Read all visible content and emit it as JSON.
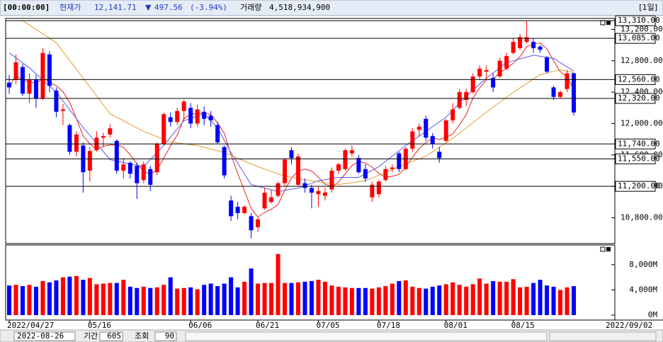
{
  "header": {
    "time": "[00:00:00]",
    "price_label": "현재가",
    "price": "12,141.71",
    "direction": "▼",
    "change": "497.56",
    "change_pct": "(-3.94%)",
    "volume_label": "거래량",
    "volume": "4,518,934,900",
    "period": "[1일]"
  },
  "toolbar": {
    "date": "2022-08-26",
    "span_label": "기간",
    "span": "605",
    "query": "조회",
    "count": "90"
  },
  "chart_data": {
    "type": "candlestick",
    "categories": [
      "2022/04/27",
      null,
      null,
      null,
      null,
      null,
      null,
      null,
      null,
      null,
      null,
      null,
      "05/16",
      null,
      null,
      null,
      null,
      null,
      null,
      null,
      null,
      null,
      null,
      null,
      null,
      null,
      null,
      "06/06",
      null,
      null,
      null,
      null,
      null,
      null,
      null,
      null,
      null,
      "06/21",
      null,
      null,
      null,
      null,
      null,
      null,
      null,
      null,
      "07/05",
      null,
      null,
      null,
      null,
      null,
      null,
      null,
      null,
      "07/18",
      null,
      null,
      null,
      null,
      null,
      null,
      null,
      null,
      null,
      "08/01",
      null,
      null,
      null,
      null,
      null,
      null,
      null,
      null,
      null,
      "08/15",
      null,
      null,
      null,
      null,
      null,
      null,
      null,
      null,
      null
    ],
    "x_end_label": "2022/09/02",
    "open": [
      12520,
      12560,
      12720,
      12380,
      12560,
      12320,
      12880,
      12420,
      12160,
      11980,
      11640,
      11720,
      11400,
      11660,
      11820,
      11860,
      11780,
      11400,
      11500,
      11460,
      11280,
      11420,
      11380,
      11740,
      12080,
      12020,
      12160,
      12200,
      12000,
      12150,
      12100,
      11980,
      11700,
      11020,
      10940,
      10860,
      10820,
      10680,
      10920,
      11000,
      11080,
      11240,
      11660,
      11220,
      11240,
      11180,
      11100,
      11080,
      11160,
      11400,
      11420,
      11620,
      11560,
      11420,
      11060,
      11100,
      11280,
      11420,
      11620,
      11420,
      11680,
      11920,
      12060,
      11840,
      11640,
      11780,
      12040,
      12200,
      12300,
      12400,
      12600,
      12660,
      12580,
      12600,
      12700,
      12900,
      12960,
      13040,
      13040,
      12980,
      12840,
      12460,
      12340,
      12440,
      12640
    ],
    "high": [
      12620,
      12880,
      12760,
      12640,
      12620,
      12960,
      12920,
      12460,
      12250,
      12000,
      11900,
      11760,
      11700,
      11900,
      11880,
      11990,
      11800,
      11560,
      11520,
      11500,
      11520,
      11460,
      11760,
      12140,
      12140,
      12200,
      12300,
      12260,
      12240,
      12220,
      12160,
      12020,
      11720,
      11080,
      11000,
      10960,
      10860,
      10800,
      11180,
      11160,
      11260,
      11560,
      11700,
      11620,
      11300,
      11220,
      11200,
      11180,
      11440,
      11500,
      11680,
      11720,
      11600,
      11480,
      11260,
      11280,
      11460,
      11480,
      11640,
      11700,
      11940,
      12000,
      12100,
      11880,
      11700,
      12060,
      12260,
      12440,
      12440,
      12640,
      12740,
      12740,
      12640,
      12840,
      12900,
      13080,
      13140,
      13310,
      13080,
      13000,
      12860,
      12480,
      12420,
      12680,
      12650
    ],
    "low": [
      12380,
      12500,
      12350,
      12260,
      12200,
      12300,
      12400,
      12080,
      11980,
      11600,
      11580,
      11120,
      11260,
      11640,
      11700,
      11820,
      11360,
      11300,
      11300,
      11040,
      11240,
      11140,
      11340,
      11720,
      11960,
      11980,
      12040,
      11940,
      11960,
      11980,
      11960,
      11740,
      11300,
      10760,
      10780,
      10840,
      10540,
      10620,
      10900,
      10980,
      11060,
      11200,
      11480,
      11200,
      11120,
      10920,
      10940,
      11020,
      11120,
      11360,
      11400,
      11580,
      11360,
      11260,
      11000,
      11060,
      11260,
      11380,
      11380,
      11400,
      11640,
      11840,
      11780,
      11680,
      11500,
      11760,
      12000,
      12180,
      12220,
      12380,
      12560,
      12560,
      12400,
      12580,
      12680,
      12880,
      12940,
      13020,
      12900,
      12900,
      12640,
      12300,
      12320,
      12400,
      12100
    ],
    "close": [
      12460,
      12780,
      12380,
      12560,
      12320,
      12900,
      12480,
      12150,
      12180,
      11640,
      11860,
      11380,
      11650,
      11820,
      11840,
      11940,
      11400,
      11480,
      11360,
      11240,
      11480,
      11220,
      11740,
      12120,
      12020,
      12160,
      12280,
      12000,
      12180,
      12060,
      12040,
      11760,
      11340,
      10820,
      10860,
      10940,
      10640,
      10780,
      11120,
      11060,
      11240,
      11540,
      11560,
      11580,
      11180,
      11120,
      11140,
      11120,
      11400,
      11480,
      11660,
      11660,
      11380,
      11300,
      11220,
      11260,
      11420,
      11440,
      11420,
      11680,
      11900,
      11960,
      11820,
      11740,
      11560,
      12040,
      12180,
      12400,
      12400,
      12600,
      12700,
      12680,
      12460,
      12800,
      12860,
      13040,
      13100,
      13100,
      12960,
      12940,
      12660,
      12340,
      12400,
      12639.27,
      12141.71
    ],
    "up_color": "#ff0000",
    "down_color": "#0000ff",
    "overlays": [
      {
        "color": "#e8231f",
        "values": [
          12460,
          12620,
          12540,
          12545,
          12500,
          12588,
          12528,
          12482,
          12406,
          12270,
          12062,
          11842,
          11742,
          11670,
          11710,
          11726,
          11730,
          11696,
          11604,
          11484,
          11392,
          11356,
          11408,
          11560,
          11716,
          11852,
          12064,
          12116,
          12128,
          12136,
          12112,
          12008,
          11876,
          11604,
          11364,
          11144,
          10920,
          10808,
          10868,
          10908,
          10968,
          11148,
          11304,
          11396,
          11420,
          11396,
          11316,
          11228,
          11192,
          11252,
          11360,
          11464,
          11516,
          11496,
          11444,
          11364,
          11316,
          11328,
          11352,
          11444,
          11572,
          11680,
          11756,
          11820,
          11796,
          11824,
          11868,
          11984,
          12116,
          12324,
          12456,
          12556,
          12568,
          12648,
          12700,
          12768,
          12852,
          12980,
          13012,
          13028,
          12952,
          12800,
          12660,
          12596,
          12436
        ]
      },
      {
        "color": "#5a5af0",
        "values": [
          12900,
          12837,
          12773,
          12710,
          12633,
          12555,
          12478,
          12400,
          12288,
          12175,
          12063,
          11950,
          11848,
          11745,
          11643,
          11540,
          11522,
          11504,
          11486,
          11468,
          11450,
          11540,
          11630,
          11720,
          11825,
          11931,
          12036,
          12066,
          12096,
          12126,
          12036,
          11946,
          11788,
          11630,
          11494,
          11359,
          11223,
          11201,
          11178,
          11156,
          11133,
          11148,
          11163,
          11178,
          11209,
          11239,
          11270,
          11285,
          11299,
          11314,
          11314,
          11314,
          11314,
          11359,
          11405,
          11450,
          11518,
          11585,
          11653,
          11720,
          11780,
          11840,
          11900,
          11960,
          12020,
          12080,
          12170,
          12260,
          12350,
          12426,
          12502,
          12578,
          12644,
          12711,
          12777,
          12800,
          12824,
          12847,
          12870,
          12857,
          12843,
          12830,
          12776,
          12722,
          12668
        ]
      },
      {
        "color": "#e0a030",
        "values": [
          null,
          null,
          13310,
          13254,
          13198,
          13142,
          13086,
          13030,
          12917,
          12804,
          12691,
          12578,
          12465,
          12352,
          12239,
          12126,
          12081,
          12036,
          11990,
          11945,
          11900,
          11866,
          11833,
          11799,
          11765,
          11754,
          11743,
          11731,
          11720,
          11698,
          11675,
          11653,
          11630,
          11594,
          11558,
          11522,
          11486,
          11450,
          11420,
          11390,
          11360,
          11330,
          11315,
          11300,
          11285,
          11270,
          11258,
          11247,
          11235,
          11223,
          11235,
          11247,
          11258,
          11270,
          11306,
          11342,
          11378,
          11414,
          11450,
          11484,
          11518,
          11551,
          11585,
          11641,
          11698,
          11754,
          11810,
          11878,
          11945,
          12013,
          12080,
          12143,
          12207,
          12270,
          12334,
          12397,
          12454,
          12510,
          12567,
          12623,
          12644,
          12665,
          12686,
          12668,
          12650
        ]
      }
    ],
    "ylim": [
      10480,
      13330
    ],
    "yticks": [
      {
        "value": 13200,
        "label": "13,200.00"
      },
      {
        "value": 12800,
        "label": "12,800.00"
      },
      {
        "value": 12400,
        "label": "12,400.00"
      },
      {
        "value": 12000,
        "label": "12,000.00"
      },
      {
        "value": 11600,
        "label": "11,600.00"
      },
      {
        "value": 11200,
        "label": "11,200.00"
      },
      {
        "value": 10800,
        "label": "10,800.00"
      }
    ],
    "price_lines": [
      {
        "value": 13310,
        "label": "13,310.00"
      },
      {
        "value": 13085,
        "label": "13,085.00"
      },
      {
        "value": 12560,
        "label": "12,560.00"
      },
      {
        "value": 12320,
        "label": "12,320.00"
      },
      {
        "value": 11740,
        "label": "11,740.00"
      },
      {
        "value": 11550,
        "label": "11,550.00"
      },
      {
        "value": 11200,
        "label": "11,200.00"
      }
    ],
    "volume": {
      "values": [
        4700,
        4800,
        4600,
        4800,
        4500,
        5400,
        5200,
        5500,
        6000,
        6100,
        6200,
        5600,
        5900,
        4900,
        5000,
        5100,
        5100,
        5600,
        4500,
        4300,
        4500,
        4300,
        4400,
        4800,
        6000,
        4200,
        4300,
        4400,
        4100,
        4800,
        5000,
        4600,
        5000,
        6000,
        4400,
        5300,
        7400,
        5000,
        5100,
        5100,
        9700,
        5100,
        5100,
        5200,
        5300,
        5400,
        5600,
        5300,
        4700,
        4500,
        4400,
        4300,
        4300,
        4300,
        4200,
        4400,
        4600,
        5000,
        5400,
        5500,
        4500,
        4300,
        4200,
        4500,
        4700,
        4900,
        5200,
        4800,
        4500,
        4900,
        5800,
        5000,
        5400,
        5300,
        5300,
        5700,
        4400,
        4500,
        5100,
        5600,
        4700,
        4500,
        4000,
        4400,
        4600
      ],
      "ylim": [
        0,
        10900
      ],
      "yticks": [
        {
          "value": 0,
          "label": "0M"
        },
        {
          "value": 4000,
          "label": "4,000M"
        },
        {
          "value": 8000,
          "label": "8,000M"
        }
      ]
    }
  }
}
